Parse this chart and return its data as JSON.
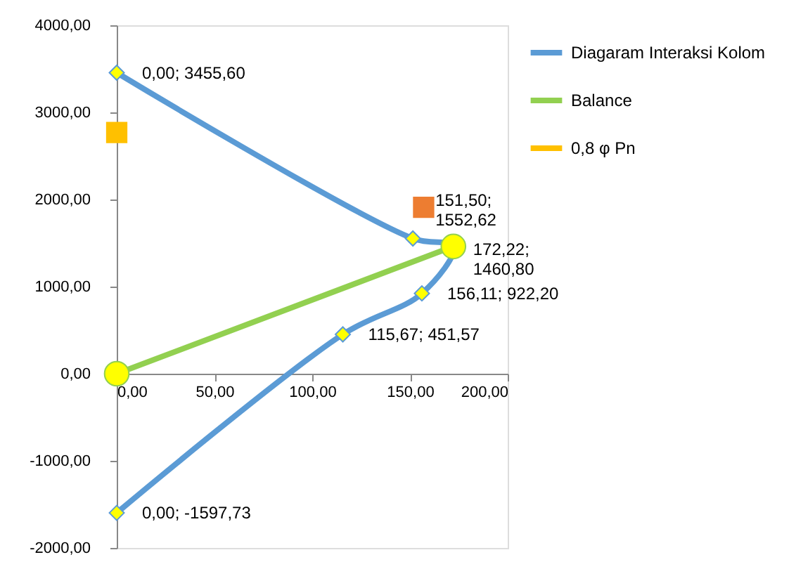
{
  "chart_data": {
    "type": "line",
    "xlim": [
      0,
      200
    ],
    "xticks": [
      {
        "value": 0,
        "label": "0,00"
      },
      {
        "value": 50,
        "label": "50,00"
      },
      {
        "value": 100,
        "label": "100,00"
      },
      {
        "value": 150,
        "label": "150,00"
      },
      {
        "value": 200,
        "label": "200,00"
      }
    ],
    "ylim": [
      -2000,
      4000
    ],
    "yticks": [
      {
        "value": -2000,
        "label": "-2000,00"
      },
      {
        "value": -1000,
        "label": "-1000,00"
      },
      {
        "value": 0,
        "label": "0,00"
      },
      {
        "value": 1000,
        "label": "1000,00"
      },
      {
        "value": 2000,
        "label": "2000,00"
      },
      {
        "value": 3000,
        "label": "3000,00"
      },
      {
        "value": 4000,
        "label": "4000,00"
      }
    ],
    "grid": false,
    "legend": "top right",
    "series": [
      {
        "name": "Diagaram Interaksi Kolom",
        "type": "line",
        "color": "#5b9bd5",
        "marker": "diamond",
        "x": [
          0,
          151.5,
          172.22,
          156.11,
          115.67,
          0
        ],
        "values": [
          3455.6,
          1552.62,
          1460.8,
          922.2,
          451.57,
          -1597.73
        ],
        "value_labels": [
          "0,00; 3455,60",
          "151,50;\n1552,62",
          "172,22;\n1460,80",
          "156,11; 922,20",
          "115,67; 451,57",
          "0,00; -1597,73"
        ]
      },
      {
        "type": "scatter",
        "color": "#ed7d31",
        "marker": "square",
        "x": [
          157
        ],
        "values": [
          1910
        ]
      },
      {
        "name": "Balance",
        "type": "line",
        "color": "#92d050",
        "marker": "circle",
        "x": [
          0,
          172.22
        ],
        "values": [
          0,
          1460.8
        ]
      },
      {
        "name": "0,8 φ Pn",
        "type": "scatter",
        "color": "#ffc000",
        "marker": "square",
        "x": [
          0
        ],
        "values": [
          2770
        ]
      }
    ]
  }
}
